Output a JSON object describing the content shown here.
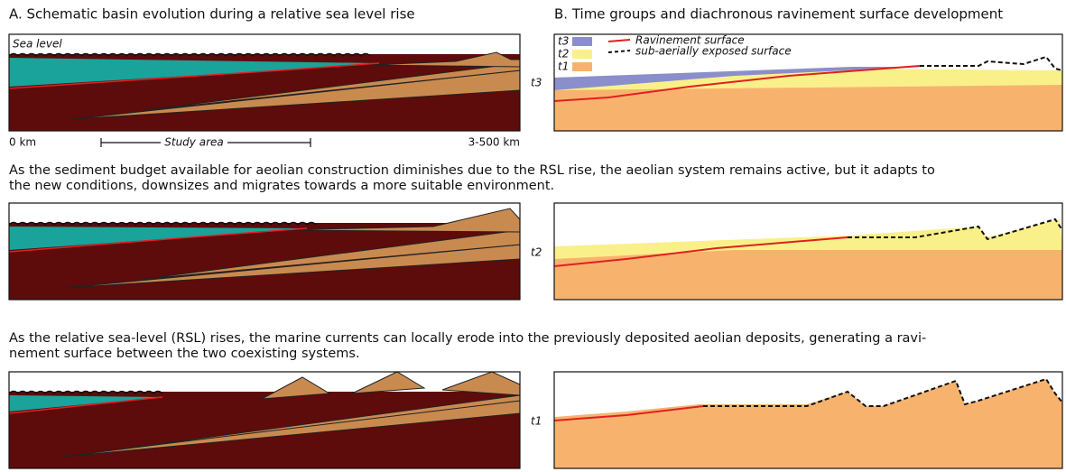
{
  "panel_a": {
    "title": "A. Schematic basin evolution during a relative sea level rise",
    "sea_level": "Sea level",
    "scale": {
      "start": "0 km",
      "study_area": "Study area",
      "end": "3-500 km"
    }
  },
  "panel_b": {
    "title": "B. Time groups and diachronous ravinement surface development",
    "legend_groups": [
      "t3",
      "t2",
      "t1"
    ],
    "legend_lines": [
      "Ravinement surface",
      "sub-aerially exposed surface"
    ]
  },
  "rows": [
    {
      "label": "t3"
    },
    {
      "label": "t2",
      "caption": [
        "As the sediment budget available for aeolian construction diminishes due to the RSL rise, the aeolian system remains active, but it adapts to",
        "the new conditions, downsizes and migrates towards a more suitable environment."
      ]
    },
    {
      "label": "t1",
      "caption": [
        "As the relative sea-level (RSL) rises, the marine currents can locally erode into the previously deposited aeolian deposits, generating a ravi-",
        "nement surface between the two coexisting systems."
      ]
    }
  ]
}
